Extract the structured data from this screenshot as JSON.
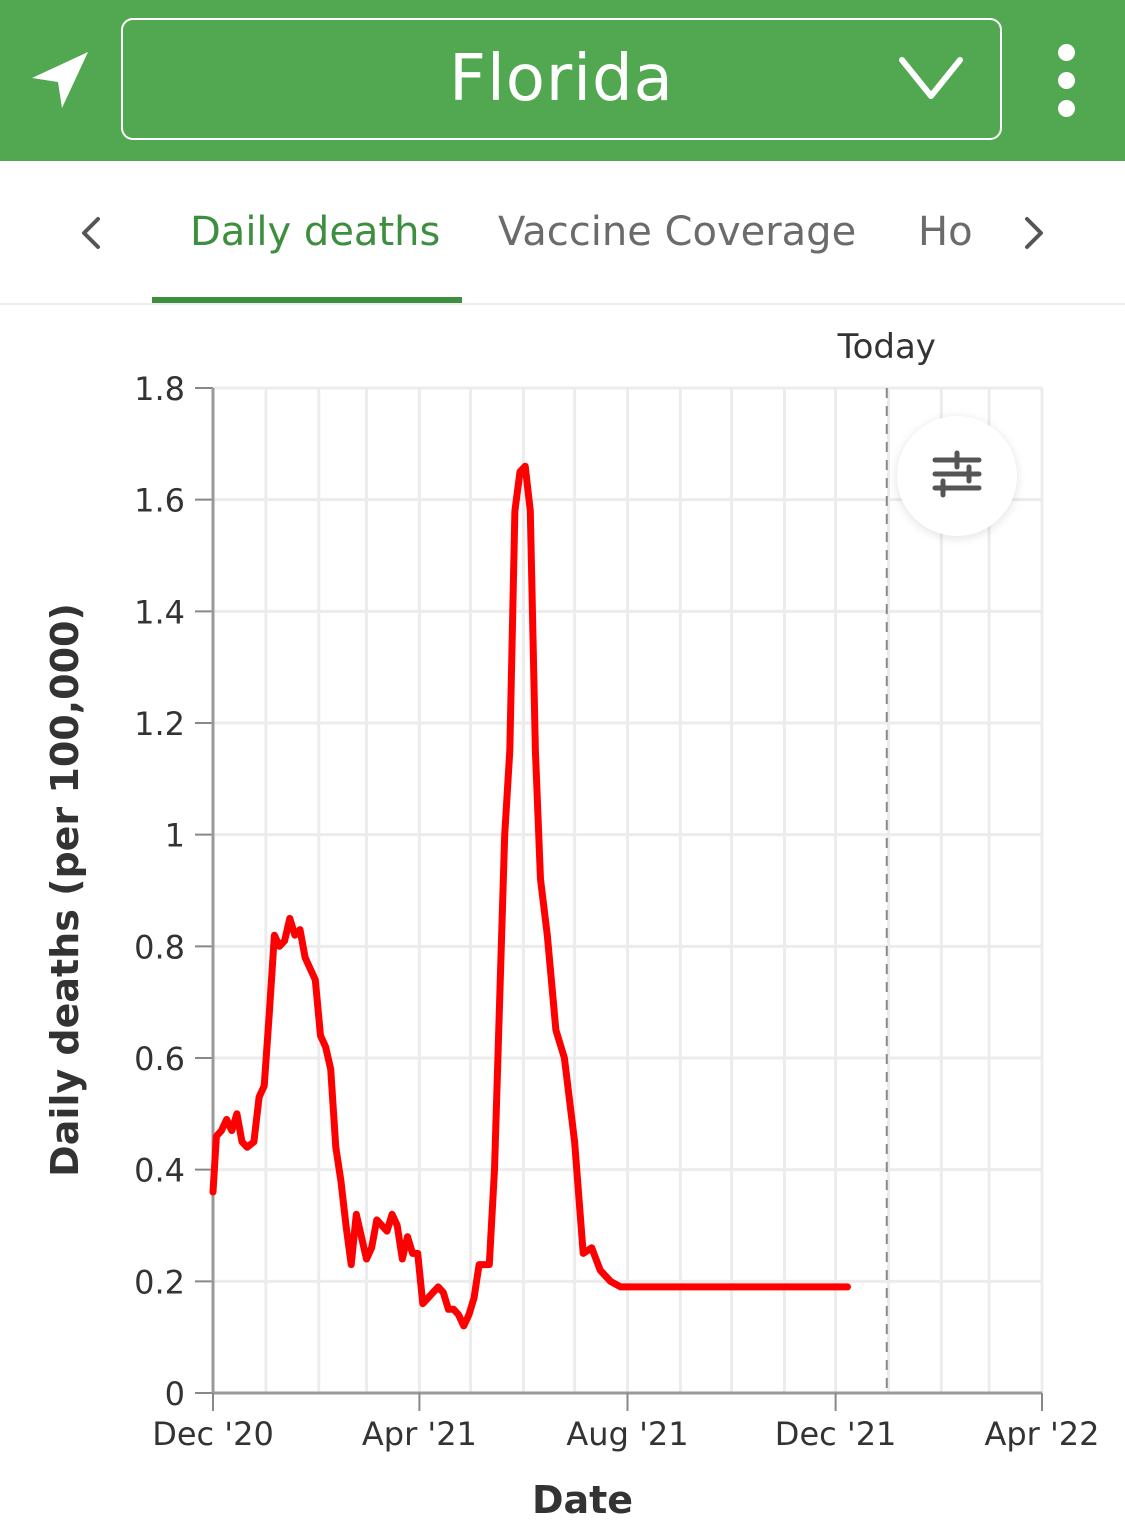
{
  "header": {
    "location_icon": "location-arrow-icon",
    "region": "Florida",
    "dropdown_icon": "chevron-down-icon",
    "menu_icon": "more-vertical-icon"
  },
  "tabs": {
    "prev_icon": "chevron-left-icon",
    "next_icon": "chevron-right-icon",
    "items": [
      {
        "label": "Daily deaths",
        "active": true
      },
      {
        "label": "Vaccine Coverage",
        "active": false
      },
      {
        "label": "Ho",
        "active": false
      }
    ]
  },
  "colors": {
    "header_green": "#52a850",
    "active_tab": "#3d8f3f",
    "line": "#ff0000"
  },
  "settings_icon": "sliders-icon",
  "chart_data": {
    "type": "line",
    "xlabel": "Date",
    "ylabel": "Daily deaths (per 100,000)",
    "x_ticks": [
      "Dec '20",
      "Apr '21",
      "Aug '21",
      "Dec '21",
      "Apr '22"
    ],
    "x_range": [
      "2020-12-01",
      "2022-04-01"
    ],
    "y_ticks": [
      "0",
      "0.2",
      "0.4",
      "0.6",
      "0.8",
      "1",
      "1.2",
      "1.4",
      "1.6",
      "1.8"
    ],
    "ylim": [
      0,
      1.8
    ],
    "grid": true,
    "today_label": "Today",
    "today_date": "2021-12-31",
    "series": [
      {
        "x": [
          "2020-12-01",
          "2020-12-03",
          "2020-12-06",
          "2020-12-09",
          "2020-12-12",
          "2020-12-15",
          "2020-12-18",
          "2020-12-21",
          "2020-12-25",
          "2020-12-28",
          "2020-12-31",
          "2021-01-03",
          "2021-01-06",
          "2021-01-09",
          "2021-01-12",
          "2021-01-15",
          "2021-01-18",
          "2021-01-21",
          "2021-01-24",
          "2021-01-27",
          "2021-01-30",
          "2021-02-02",
          "2021-02-05",
          "2021-02-08",
          "2021-02-11",
          "2021-02-14",
          "2021-02-17",
          "2021-02-20",
          "2021-02-23",
          "2021-02-26",
          "2021-03-01",
          "2021-03-04",
          "2021-03-07",
          "2021-03-10",
          "2021-03-13",
          "2021-03-16",
          "2021-03-19",
          "2021-03-22",
          "2021-03-25",
          "2021-03-28",
          "2021-03-31",
          "2021-04-03",
          "2021-04-06",
          "2021-04-09",
          "2021-04-12",
          "2021-04-15",
          "2021-04-18",
          "2021-04-21",
          "2021-04-24",
          "2021-04-27",
          "2021-04-30",
          "2021-05-03",
          "2021-05-06",
          "2021-05-09",
          "2021-05-12",
          "2021-05-15",
          "2021-05-18",
          "2021-05-21",
          "2021-05-24",
          "2021-05-27",
          "2021-05-30",
          "2021-06-02",
          "2021-06-05",
          "2021-06-08",
          "2021-06-11",
          "2021-06-15",
          "2021-06-20",
          "2021-06-25",
          "2021-07-01",
          "2021-07-06",
          "2021-07-11",
          "2021-07-16",
          "2021-07-22",
          "2021-07-28",
          "2021-08-03",
          "2021-08-09",
          "2021-08-15",
          "2021-08-21",
          "2021-08-27",
          "2021-09-02",
          "2021-09-08",
          "2021-09-14",
          "2021-09-20",
          "2021-09-26",
          "2021-10-02",
          "2021-10-08",
          "2021-10-14",
          "2021-10-20",
          "2021-10-26",
          "2021-11-01",
          "2021-11-07",
          "2021-11-13",
          "2021-11-19",
          "2021-11-25",
          "2021-12-01",
          "2021-12-06",
          "2021-12-08"
        ],
        "y": [
          0.36,
          0.46,
          0.47,
          0.49,
          0.47,
          0.5,
          0.45,
          0.44,
          0.45,
          0.53,
          0.55,
          0.68,
          0.82,
          0.8,
          0.81,
          0.85,
          0.82,
          0.83,
          0.78,
          0.76,
          0.74,
          0.64,
          0.62,
          0.58,
          0.44,
          0.38,
          0.3,
          0.23,
          0.32,
          0.28,
          0.24,
          0.26,
          0.31,
          0.3,
          0.29,
          0.32,
          0.3,
          0.24,
          0.28,
          0.25,
          0.25,
          0.16,
          0.17,
          0.18,
          0.19,
          0.18,
          0.15,
          0.15,
          0.14,
          0.12,
          0.14,
          0.17,
          0.23,
          0.23,
          0.23,
          0.4,
          0.7,
          1.0,
          1.15,
          1.58,
          1.65,
          1.66,
          1.58,
          1.15,
          0.92,
          0.82,
          0.65,
          0.6,
          0.45,
          0.25,
          0.26,
          0.22,
          0.2,
          0.19,
          0.19,
          0.19,
          0.19,
          0.19,
          0.19,
          0.19,
          0.19,
          0.19,
          0.19,
          0.19,
          0.19,
          0.19,
          0.19,
          0.19,
          0.19,
          0.19,
          0.19,
          0.19,
          0.19,
          0.19,
          0.19,
          0.19,
          0.19
        ]
      }
    ]
  }
}
